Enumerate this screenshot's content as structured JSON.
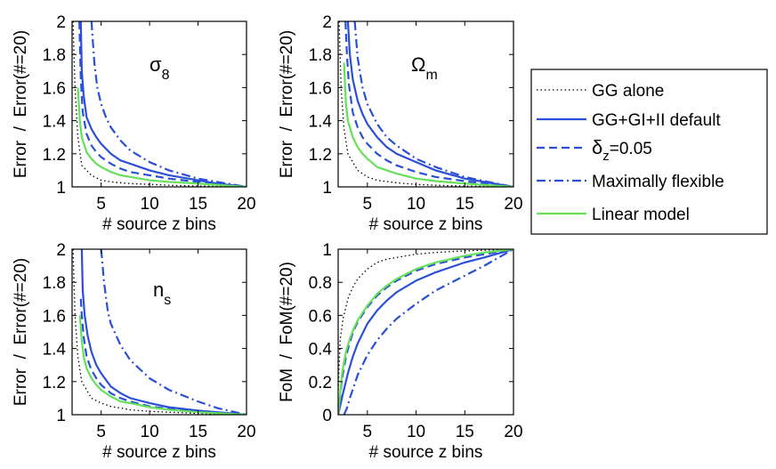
{
  "chart_data": [
    {
      "type": "line",
      "panel_label": "σ",
      "panel_label_sub": "8",
      "xlabel": "# source z bins",
      "ylabel": "Error  /  Error(#=20)",
      "xlim": [
        2,
        20
      ],
      "ylim": [
        1,
        2
      ],
      "xticks": [
        "5",
        "10",
        "15",
        "20"
      ],
      "yticks": [
        "1",
        "1.2",
        "1.4",
        "1.6",
        "1.8",
        "2"
      ],
      "series": [
        {
          "name": "GG alone",
          "x": [
            2.1,
            2.3,
            2.6,
            3,
            4,
            5,
            6,
            8,
            10,
            12,
            15,
            20
          ],
          "y": [
            2,
            1.6,
            1.3,
            1.13,
            1.07,
            1.04,
            1.03,
            1.02,
            1.015,
            1.01,
            1.005,
            1.0
          ]
        },
        {
          "name": "GG+GI+II default",
          "x": [
            2.9,
            3,
            3.2,
            3.5,
            4,
            4.5,
            5,
            6,
            7,
            8,
            10,
            12,
            15,
            17,
            20
          ],
          "y": [
            2,
            1.7,
            1.55,
            1.42,
            1.35,
            1.3,
            1.26,
            1.2,
            1.16,
            1.14,
            1.1,
            1.07,
            1.04,
            1.02,
            1.0
          ]
        },
        {
          "name": "δz=0.05",
          "x": [
            2.75,
            2.9,
            3.1,
            3.5,
            4,
            4.5,
            5,
            6,
            7,
            8,
            10,
            12,
            15,
            17,
            20
          ],
          "y": [
            2,
            1.65,
            1.45,
            1.32,
            1.25,
            1.21,
            1.18,
            1.14,
            1.11,
            1.09,
            1.07,
            1.05,
            1.03,
            1.02,
            1.0
          ]
        },
        {
          "name": "Maximally flexible",
          "x": [
            4.0,
            4.3,
            4.6,
            5,
            5.5,
            6,
            7,
            8,
            10,
            12,
            15,
            17,
            20
          ],
          "y": [
            2,
            1.75,
            1.6,
            1.5,
            1.42,
            1.36,
            1.28,
            1.22,
            1.15,
            1.1,
            1.05,
            1.03,
            1.0
          ]
        },
        {
          "name": "Linear model",
          "x": [
            2.6,
            2.8,
            3,
            3.5,
            4,
            4.5,
            5,
            6,
            7,
            8,
            10,
            12,
            15,
            20
          ],
          "y": [
            1.6,
            1.4,
            1.3,
            1.21,
            1.17,
            1.14,
            1.12,
            1.09,
            1.07,
            1.06,
            1.04,
            1.03,
            1.02,
            1.0
          ]
        }
      ]
    },
    {
      "type": "line",
      "panel_label": "Ω",
      "panel_label_sub": "m",
      "xlabel": "# source z bins",
      "ylabel": "Error  /  Error(#=20)",
      "xlim": [
        2,
        20
      ],
      "ylim": [
        1,
        2
      ],
      "xticks": [
        "5",
        "10",
        "15",
        "20"
      ],
      "yticks": [
        "1",
        "1.2",
        "1.4",
        "1.6",
        "1.8",
        "2"
      ],
      "series": [
        {
          "name": "GG alone",
          "x": [
            2.1,
            2.3,
            2.6,
            3,
            4,
            5,
            6,
            8,
            10,
            12,
            15,
            20
          ],
          "y": [
            2,
            1.6,
            1.35,
            1.2,
            1.1,
            1.06,
            1.04,
            1.025,
            1.015,
            1.01,
            1.005,
            1.0
          ]
        },
        {
          "name": "GG+GI+II default",
          "x": [
            3.0,
            3.2,
            3.5,
            4,
            4.5,
            5,
            6,
            7,
            8,
            10,
            12,
            15,
            17,
            20
          ],
          "y": [
            2,
            1.8,
            1.65,
            1.52,
            1.44,
            1.38,
            1.3,
            1.24,
            1.2,
            1.15,
            1.1,
            1.05,
            1.03,
            1.0
          ]
        },
        {
          "name": "δz=0.05",
          "x": [
            2.75,
            2.9,
            3.1,
            3.5,
            4,
            4.5,
            5,
            6,
            7,
            8,
            10,
            12,
            15,
            17,
            20
          ],
          "y": [
            2,
            1.8,
            1.62,
            1.45,
            1.36,
            1.3,
            1.26,
            1.2,
            1.16,
            1.13,
            1.09,
            1.06,
            1.035,
            1.02,
            1.0
          ]
        },
        {
          "name": "Maximally flexible",
          "x": [
            3.7,
            4,
            4.5,
            5,
            6,
            7,
            8,
            10,
            12,
            15,
            17,
            20
          ],
          "y": [
            2,
            1.78,
            1.6,
            1.5,
            1.38,
            1.3,
            1.25,
            1.17,
            1.12,
            1.06,
            1.035,
            1.0
          ]
        },
        {
          "name": "Linear model",
          "x": [
            2.6,
            2.8,
            3,
            3.5,
            4,
            4.5,
            5,
            6,
            7,
            8,
            10,
            12,
            15,
            20
          ],
          "y": [
            1.75,
            1.5,
            1.4,
            1.3,
            1.24,
            1.2,
            1.17,
            1.12,
            1.1,
            1.08,
            1.05,
            1.035,
            1.02,
            1.0
          ]
        }
      ]
    },
    {
      "type": "line",
      "panel_label": "n",
      "panel_label_sub": "s",
      "xlabel": "# source z bins",
      "ylabel": "Error  /  Error(#=20)",
      "xlim": [
        2,
        20
      ],
      "ylim": [
        1,
        2
      ],
      "xticks": [
        "5",
        "10",
        "15",
        "20"
      ],
      "yticks": [
        "1",
        "1.2",
        "1.4",
        "1.6",
        "1.8",
        "2"
      ],
      "series": [
        {
          "name": "GG alone",
          "x": [
            2.1,
            2.3,
            2.6,
            3,
            4,
            5,
            6,
            8,
            10,
            12,
            15,
            20
          ],
          "y": [
            2,
            1.6,
            1.35,
            1.2,
            1.1,
            1.07,
            1.05,
            1.03,
            1.02,
            1.015,
            1.008,
            1.0
          ]
        },
        {
          "name": "GG+GI+II default",
          "x": [
            3.0,
            3.1,
            3.3,
            3.6,
            4,
            4.5,
            5,
            6,
            7,
            8,
            10,
            12,
            15,
            17,
            20
          ],
          "y": [
            2,
            1.75,
            1.6,
            1.48,
            1.38,
            1.3,
            1.25,
            1.17,
            1.13,
            1.1,
            1.07,
            1.045,
            1.025,
            1.015,
            1.0
          ]
        },
        {
          "name": "δz=0.05",
          "x": [
            2.9,
            3,
            3.2,
            3.5,
            4,
            4.5,
            5,
            6,
            7,
            8,
            10,
            12,
            15,
            17,
            20
          ],
          "y": [
            1.7,
            1.6,
            1.47,
            1.35,
            1.27,
            1.22,
            1.18,
            1.13,
            1.1,
            1.08,
            1.05,
            1.035,
            1.02,
            1.01,
            1.0
          ]
        },
        {
          "name": "Maximally flexible",
          "x": [
            5.0,
            5.3,
            5.7,
            6,
            7,
            8,
            10,
            12,
            15,
            17,
            20
          ],
          "y": [
            2,
            1.8,
            1.62,
            1.55,
            1.42,
            1.33,
            1.22,
            1.15,
            1.08,
            1.04,
            1.0
          ]
        },
        {
          "name": "Linear model",
          "x": [
            2.8,
            3,
            3.2,
            3.5,
            4,
            4.5,
            5,
            6,
            7,
            8,
            10,
            12,
            15,
            20
          ],
          "y": [
            1.6,
            1.45,
            1.35,
            1.28,
            1.22,
            1.18,
            1.15,
            1.11,
            1.08,
            1.07,
            1.045,
            1.03,
            1.015,
            1.0
          ]
        }
      ]
    },
    {
      "type": "line",
      "panel_label": "",
      "panel_label_sub": "",
      "xlabel": "# source z bins",
      "ylabel": "FoM  /  FoM(#=20)",
      "xlim": [
        2,
        20
      ],
      "ylim": [
        0,
        1
      ],
      "xticks": [
        "5",
        "10",
        "15",
        "20"
      ],
      "yticks": [
        "0",
        "0.2",
        "0.4",
        "0.6",
        "0.8",
        "1"
      ],
      "series": [
        {
          "name": "GG alone",
          "x": [
            2,
            2.2,
            2.5,
            3,
            3.5,
            4,
            5,
            6,
            7,
            8,
            10,
            12,
            15,
            20
          ],
          "y": [
            0.15,
            0.45,
            0.58,
            0.7,
            0.77,
            0.82,
            0.88,
            0.92,
            0.94,
            0.95,
            0.97,
            0.98,
            0.99,
            1.0
          ]
        },
        {
          "name": "GG+GI+II default",
          "x": [
            2,
            2.5,
            3,
            3.5,
            4,
            5,
            6,
            7,
            8,
            10,
            12,
            15,
            17,
            20
          ],
          "y": [
            0.0,
            0.13,
            0.25,
            0.35,
            0.43,
            0.55,
            0.63,
            0.69,
            0.74,
            0.81,
            0.86,
            0.92,
            0.95,
            1.0
          ]
        },
        {
          "name": "δz=0.05",
          "x": [
            2,
            2.4,
            2.8,
            3.2,
            3.6,
            4,
            5,
            6,
            7,
            8,
            10,
            12,
            15,
            17,
            20
          ],
          "y": [
            0.0,
            0.22,
            0.35,
            0.44,
            0.51,
            0.56,
            0.65,
            0.72,
            0.77,
            0.81,
            0.87,
            0.91,
            0.95,
            0.97,
            1.0
          ]
        },
        {
          "name": "Maximally flexible",
          "x": [
            2.6,
            2.9,
            3.2,
            3.6,
            4,
            5,
            6,
            7,
            8,
            10,
            12,
            15,
            17,
            20
          ],
          "y": [
            0.0,
            0.04,
            0.1,
            0.17,
            0.24,
            0.36,
            0.45,
            0.52,
            0.58,
            0.67,
            0.75,
            0.84,
            0.9,
            1.0
          ]
        },
        {
          "name": "Linear model",
          "x": [
            2,
            2.4,
            2.8,
            3.2,
            3.6,
            4,
            5,
            6,
            7,
            8,
            10,
            12,
            15,
            17,
            20
          ],
          "y": [
            0.0,
            0.25,
            0.38,
            0.46,
            0.52,
            0.57,
            0.66,
            0.73,
            0.78,
            0.82,
            0.88,
            0.92,
            0.96,
            0.98,
            1.0
          ]
        }
      ]
    }
  ],
  "legend": {
    "items": [
      {
        "label": "GG alone",
        "sub": ""
      },
      {
        "label": "GG+GI+II default",
        "sub": ""
      },
      {
        "label": "δ",
        "sub": "z",
        "suffix": "=0.05"
      },
      {
        "label": "Maximally flexible",
        "sub": ""
      },
      {
        "label": "Linear model",
        "sub": ""
      }
    ]
  },
  "styles": {
    "series_colors": [
      "#000000",
      "#2b4fd6",
      "#2b4fd6",
      "#2b4fd6",
      "#66e05a"
    ],
    "series_dash": [
      "dotted",
      "solid",
      "dashed",
      "dashdot",
      "solid"
    ]
  }
}
